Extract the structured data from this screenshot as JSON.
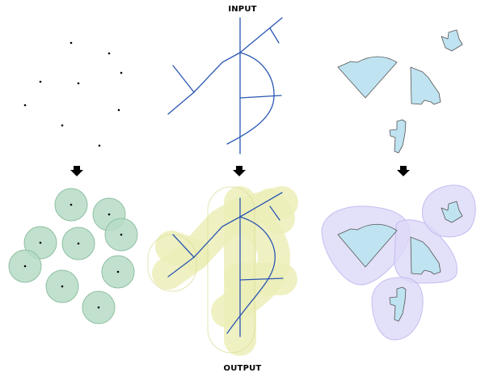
{
  "labels": {
    "input": "INPUT",
    "output": "OUTPUT"
  },
  "colors": {
    "point": "#000000",
    "point_buffer_fill": "#b6dcc6",
    "point_buffer_stroke": "#8fbfa3",
    "line": "#2a57b3",
    "line_buffer_fill": "#ecefb8",
    "line_buffer_stroke": "#d8dc94",
    "polygon_fill": "#bfe3f0",
    "polygon_stroke": "#555555",
    "polygon_buffer_fill": "#dcd8f7",
    "polygon_buffer_stroke": "#c3bdf0",
    "arrow": "#000000"
  },
  "icons": [
    "down-arrow-icon"
  ]
}
